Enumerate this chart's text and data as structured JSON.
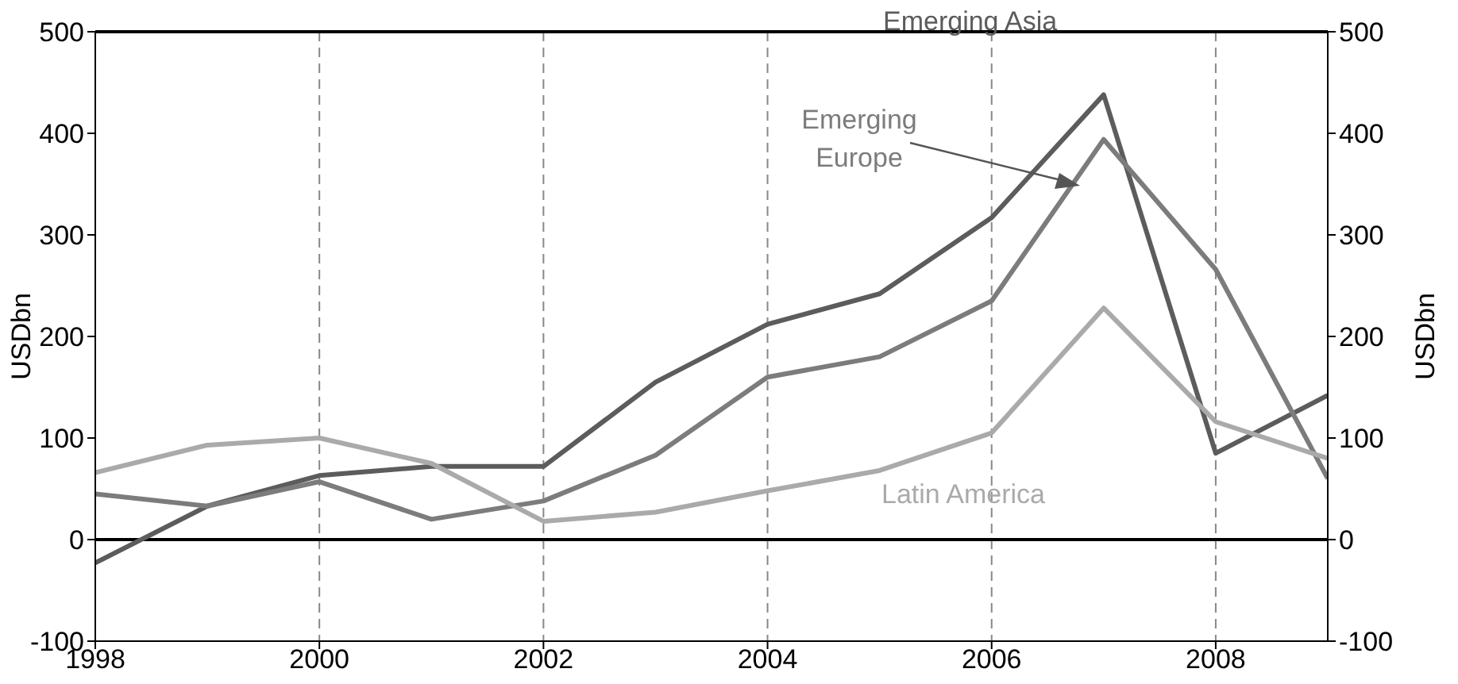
{
  "chart_data": {
    "type": "line",
    "xlim": [
      1998,
      2009
    ],
    "xticks": [
      1998,
      2000,
      2002,
      2004,
      2006,
      2008
    ],
    "x": [
      1998,
      1999,
      2000,
      2001,
      2002,
      2003,
      2004,
      2005,
      2006,
      2007,
      2008,
      2009
    ],
    "ylim": [
      -100,
      500
    ],
    "yticks": [
      -100,
      0,
      100,
      200,
      300,
      400,
      500
    ],
    "y2lim": [
      -100,
      500
    ],
    "y2ticks": [
      -100,
      0,
      100,
      200,
      300,
      400,
      500
    ],
    "ylabel": "USDbn",
    "y2label": "USDbn",
    "grid": true,
    "legend": false,
    "marker": "none",
    "line_style": "solid",
    "ref_lines": [
      {
        "axis": "y",
        "value": 0,
        "color": "#000000"
      }
    ],
    "series": [
      {
        "name": "Emerging Asia",
        "color": "#5c5c5c",
        "values": [
          -23,
          33,
          63,
          72,
          72,
          155,
          212,
          242,
          317,
          438,
          85,
          142
        ]
      },
      {
        "name": "Emerging Europe",
        "color": "#7c7c7c",
        "values": [
          45,
          33,
          57,
          20,
          38,
          83,
          160,
          180,
          235,
          394,
          266,
          60
        ]
      },
      {
        "name": "Latin America",
        "color": "#aaaaaa",
        "values": [
          66,
          93,
          100,
          75,
          18,
          27,
          48,
          68,
          105,
          228,
          116,
          80
        ]
      }
    ]
  }
}
